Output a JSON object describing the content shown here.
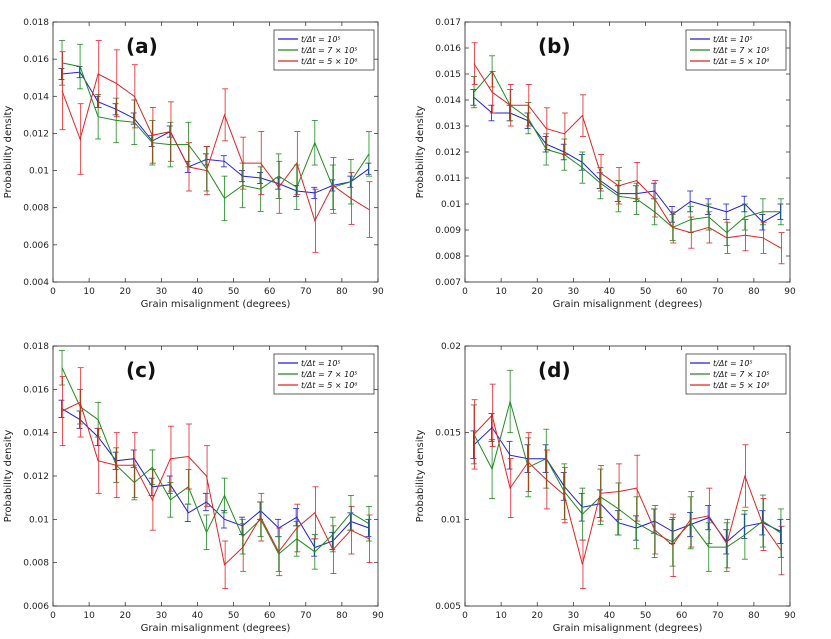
{
  "colors": {
    "s1": "#1f1fd6",
    "s2": "#1f8a1f",
    "s3": "#e02424",
    "axis": "#222222"
  },
  "legend_labels": [
    "t/Δt = 10⁵",
    "t/Δt = 7 × 10⁵",
    "t/Δt = 5 × 10⁶"
  ],
  "chart_data": [
    {
      "type": "line",
      "panel_label": "(a)",
      "xlabel": "Grain misalignment (degrees)",
      "ylabel": "Probability density",
      "xlim": [
        0,
        90
      ],
      "ylim": [
        0.004,
        0.018
      ],
      "xticks": [
        0,
        10,
        20,
        30,
        40,
        50,
        60,
        70,
        80,
        90
      ],
      "xtick_labels": [
        "0",
        "10",
        "20",
        "30",
        "40",
        "50",
        "60",
        "70",
        "80",
        "90"
      ],
      "yticks": [
        0.004,
        0.006,
        0.008,
        0.01,
        0.012,
        0.014,
        0.016,
        0.018
      ],
      "ytick_labels": [
        "0.004",
        "0.006",
        "0.008",
        "0.01",
        "0.012",
        "0.014",
        "0.016",
        "0.018"
      ],
      "x": [
        2.5,
        7.5,
        12.5,
        17.5,
        22.5,
        27.5,
        32.5,
        37.5,
        42.5,
        47.5,
        52.5,
        57.5,
        62.5,
        67.5,
        72.5,
        77.5,
        82.5,
        87.5
      ],
      "series": [
        {
          "name": "t/Δt = 10⁵",
          "values": [
            0.0152,
            0.0153,
            0.0137,
            0.0133,
            0.0128,
            0.0116,
            0.0121,
            0.0102,
            0.0106,
            0.0105,
            0.0097,
            0.0096,
            0.0093,
            0.0089,
            0.0088,
            0.0092,
            0.0094,
            0.0101
          ],
          "err": [
            0.0003,
            0.0003,
            0.0003,
            0.0003,
            0.0003,
            0.0003,
            0.0003,
            0.0003,
            0.0003,
            0.0003,
            0.0003,
            0.0003,
            0.0003,
            0.0003,
            0.0003,
            0.0003,
            0.0003,
            0.0003
          ]
        },
        {
          "name": "t/Δt = 7 × 10⁵",
          "values": [
            0.0158,
            0.0156,
            0.0129,
            0.0127,
            0.0126,
            0.0115,
            0.0114,
            0.0114,
            0.0101,
            0.0085,
            0.0092,
            0.009,
            0.0097,
            0.0091,
            0.0115,
            0.0091,
            0.0094,
            0.0109
          ],
          "err": [
            0.0012,
            0.0012,
            0.0012,
            0.0012,
            0.0012,
            0.0012,
            0.0012,
            0.0012,
            0.0012,
            0.0012,
            0.0012,
            0.0012,
            0.0012,
            0.0012,
            0.0012,
            0.0012,
            0.0012,
            0.0012
          ]
        },
        {
          "name": "t/Δt = 5 × 10⁶",
          "values": [
            0.0143,
            0.0117,
            0.0152,
            0.0147,
            0.014,
            0.0119,
            0.0121,
            0.0102,
            0.01,
            0.013,
            0.0104,
            0.0104,
            0.0091,
            0.0104,
            0.0073,
            0.0092,
            0.0085,
            0.0079
          ],
          "err": [
            0.0021,
            0.0019,
            0.0018,
            0.0018,
            0.0017,
            0.0015,
            0.0016,
            0.0013,
            0.0013,
            0.0014,
            0.0014,
            0.0017,
            0.0014,
            0.0017,
            0.0017,
            0.0015,
            0.0014,
            0.0015
          ]
        }
      ]
    },
    {
      "type": "line",
      "panel_label": "(b)",
      "xlabel": "Grain misalignment (degrees)",
      "ylabel": "Probability density",
      "xlim": [
        0,
        90
      ],
      "ylim": [
        0.007,
        0.017
      ],
      "xticks": [
        0,
        10,
        20,
        30,
        40,
        50,
        60,
        70,
        80,
        90
      ],
      "xtick_labels": [
        "0",
        "10",
        "20",
        "30",
        "40",
        "50",
        "60",
        "70",
        "80",
        "90"
      ],
      "yticks": [
        0.007,
        0.008,
        0.009,
        0.01,
        0.011,
        0.012,
        0.013,
        0.014,
        0.015,
        0.016,
        0.017
      ],
      "ytick_labels": [
        "0.007",
        "0.008",
        "0.009",
        "0.01",
        "0.011",
        "0.012",
        "0.013",
        "0.014",
        "0.015",
        "0.016",
        "0.017"
      ],
      "x": [
        2.5,
        7.5,
        12.5,
        17.5,
        22.5,
        27.5,
        32.5,
        37.5,
        42.5,
        47.5,
        52.5,
        57.5,
        62.5,
        67.5,
        72.5,
        77.5,
        82.5,
        87.5
      ],
      "series": [
        {
          "name": "t/Δt = 10⁵",
          "values": [
            0.0141,
            0.0135,
            0.0135,
            0.0132,
            0.0123,
            0.012,
            0.0116,
            0.0109,
            0.0104,
            0.0104,
            0.0105,
            0.0096,
            0.0101,
            0.0099,
            0.0097,
            0.01,
            0.0093,
            0.0097
          ],
          "err": [
            0.0003,
            0.0003,
            0.0003,
            0.0003,
            0.0003,
            0.0003,
            0.0003,
            0.0003,
            0.0003,
            0.0003,
            0.0003,
            0.0003,
            0.0004,
            0.0003,
            0.0003,
            0.0003,
            0.0003,
            0.0003
          ]
        },
        {
          "name": "t/Δt = 7 × 10⁵",
          "values": [
            0.0143,
            0.0151,
            0.0138,
            0.0133,
            0.0121,
            0.0119,
            0.0114,
            0.0108,
            0.0103,
            0.0102,
            0.0097,
            0.0091,
            0.0094,
            0.0095,
            0.0089,
            0.0095,
            0.0097,
            0.0097
          ],
          "err": [
            0.0006,
            0.0006,
            0.0006,
            0.0006,
            0.0006,
            0.0006,
            0.0006,
            0.0006,
            0.0006,
            0.0006,
            0.0005,
            0.0005,
            0.0005,
            0.0005,
            0.0005,
            0.0005,
            0.0005,
            0.0005
          ]
        },
        {
          "name": "t/Δt = 5 × 10⁶",
          "values": [
            0.0154,
            0.0143,
            0.0138,
            0.0138,
            0.0129,
            0.0127,
            0.0134,
            0.0112,
            0.0107,
            0.0109,
            0.0102,
            0.0091,
            0.0089,
            0.0091,
            0.0087,
            0.0088,
            0.0087,
            0.0083
          ],
          "err": [
            0.0008,
            0.0008,
            0.0008,
            0.0008,
            0.0008,
            0.0008,
            0.0008,
            0.0007,
            0.0007,
            0.0007,
            0.0007,
            0.0006,
            0.0006,
            0.0006,
            0.0006,
            0.0006,
            0.0006,
            0.0006
          ]
        }
      ]
    },
    {
      "type": "line",
      "panel_label": "(c)",
      "xlabel": "Grain misalignment (degrees)",
      "ylabel": "Probability density",
      "xlim": [
        0,
        90
      ],
      "ylim": [
        0.006,
        0.018
      ],
      "xticks": [
        0,
        10,
        20,
        30,
        40,
        50,
        60,
        70,
        80,
        90
      ],
      "xtick_labels": [
        "0",
        "10",
        "20",
        "30",
        "40",
        "50",
        "60",
        "70",
        "80",
        "90"
      ],
      "yticks": [
        0.006,
        0.008,
        0.01,
        0.012,
        0.014,
        0.016,
        0.018
      ],
      "ytick_labels": [
        "0.006",
        "0.008",
        "0.01",
        "0.012",
        "0.014",
        "0.016",
        "0.018"
      ],
      "x": [
        2.5,
        7.5,
        12.5,
        17.5,
        22.5,
        27.5,
        32.5,
        37.5,
        42.5,
        47.5,
        52.5,
        57.5,
        62.5,
        67.5,
        72.5,
        77.5,
        82.5,
        87.5
      ],
      "series": [
        {
          "name": "t/Δt = 10⁵",
          "values": [
            0.0151,
            0.0146,
            0.0138,
            0.0127,
            0.0128,
            0.0115,
            0.0116,
            0.0103,
            0.0108,
            0.01,
            0.0097,
            0.0104,
            0.0096,
            0.0101,
            0.0087,
            0.009,
            0.0099,
            0.0096
          ],
          "err": [
            0.0004,
            0.0004,
            0.0004,
            0.0004,
            0.0004,
            0.0004,
            0.0004,
            0.0004,
            0.0004,
            0.0004,
            0.0004,
            0.0004,
            0.0004,
            0.0004,
            0.0004,
            0.0004,
            0.0004,
            0.0004
          ]
        },
        {
          "name": "t/Δt = 7 × 10⁵",
          "values": [
            0.017,
            0.0152,
            0.0146,
            0.0125,
            0.0117,
            0.0124,
            0.0109,
            0.0115,
            0.0094,
            0.0111,
            0.0092,
            0.01,
            0.0084,
            0.0091,
            0.0085,
            0.0093,
            0.0103,
            0.0098
          ],
          "err": [
            0.0008,
            0.0008,
            0.0008,
            0.0008,
            0.0008,
            0.0008,
            0.0008,
            0.0008,
            0.0008,
            0.0008,
            0.0008,
            0.0008,
            0.0008,
            0.0008,
            0.0008,
            0.0008,
            0.0008,
            0.0008
          ]
        },
        {
          "name": "t/Δt = 5 × 10⁶",
          "values": [
            0.015,
            0.0154,
            0.0127,
            0.0125,
            0.0125,
            0.0109,
            0.0128,
            0.0129,
            0.012,
            0.0079,
            0.0087,
            0.0101,
            0.0085,
            0.0096,
            0.0103,
            0.0086,
            0.0095,
            0.0091
          ],
          "err": [
            0.0016,
            0.0016,
            0.0015,
            0.0015,
            0.0015,
            0.0014,
            0.0015,
            0.0015,
            0.0014,
            0.0011,
            0.0011,
            0.0011,
            0.0011,
            0.0011,
            0.0012,
            0.0011,
            0.0011,
            0.0011
          ]
        }
      ]
    },
    {
      "type": "line",
      "panel_label": "(d)",
      "xlabel": "Grain misalignment (degrees)",
      "ylabel": "Probability density",
      "xlim": [
        0,
        90
      ],
      "ylim": [
        0.005,
        0.02
      ],
      "xticks": [
        0,
        10,
        20,
        30,
        40,
        50,
        60,
        70,
        80,
        90
      ],
      "xtick_labels": [
        "0",
        "10",
        "20",
        "30",
        "40",
        "50",
        "60",
        "70",
        "80",
        "90"
      ],
      "yticks": [
        0.005,
        0.01,
        0.015,
        0.02
      ],
      "ytick_labels": [
        "0.005",
        "0.01",
        "0.015",
        "0.02"
      ],
      "x": [
        2.5,
        7.5,
        12.5,
        17.5,
        22.5,
        27.5,
        32.5,
        37.5,
        42.5,
        47.5,
        52.5,
        57.5,
        62.5,
        67.5,
        72.5,
        77.5,
        82.5,
        87.5
      ],
      "series": [
        {
          "name": "t/Δt = 10⁵",
          "values": [
            0.0143,
            0.0153,
            0.0137,
            0.0135,
            0.0135,
            0.0119,
            0.0107,
            0.0109,
            0.0098,
            0.0095,
            0.0099,
            0.0093,
            0.0097,
            0.0101,
            0.0087,
            0.0096,
            0.0098,
            0.0093
          ],
          "err": [
            0.0008,
            0.0008,
            0.0008,
            0.0008,
            0.0008,
            0.0008,
            0.0008,
            0.0008,
            0.0007,
            0.0007,
            0.0007,
            0.0007,
            0.0007,
            0.0007,
            0.0007,
            0.0007,
            0.0007,
            0.0007
          ]
        },
        {
          "name": "t/Δt = 7 × 10⁵",
          "values": [
            0.0149,
            0.0129,
            0.0168,
            0.013,
            0.0135,
            0.0116,
            0.0103,
            0.0113,
            0.0106,
            0.0098,
            0.0092,
            0.0087,
            0.0098,
            0.0084,
            0.0084,
            0.0091,
            0.0099,
            0.0092
          ],
          "err": [
            0.0017,
            0.0017,
            0.0018,
            0.0017,
            0.0017,
            0.0016,
            0.0015,
            0.0016,
            0.0015,
            0.0015,
            0.0014,
            0.0014,
            0.0015,
            0.0014,
            0.0014,
            0.0014,
            0.0015,
            0.0014
          ]
        },
        {
          "name": "t/Δt = 5 × 10⁶",
          "values": [
            0.0149,
            0.016,
            0.0118,
            0.0133,
            0.0123,
            0.0114,
            0.0074,
            0.0115,
            0.0116,
            0.0118,
            0.0094,
            0.0085,
            0.01,
            0.0102,
            0.0086,
            0.0125,
            0.0097,
            0.0082
          ],
          "err": [
            0.002,
            0.0018,
            0.0017,
            0.0017,
            0.0017,
            0.0016,
            0.0014,
            0.0016,
            0.0016,
            0.0019,
            0.0014,
            0.0018,
            0.0016,
            0.0016,
            0.0014,
            0.0018,
            0.0015,
            0.0014
          ]
        }
      ]
    }
  ]
}
